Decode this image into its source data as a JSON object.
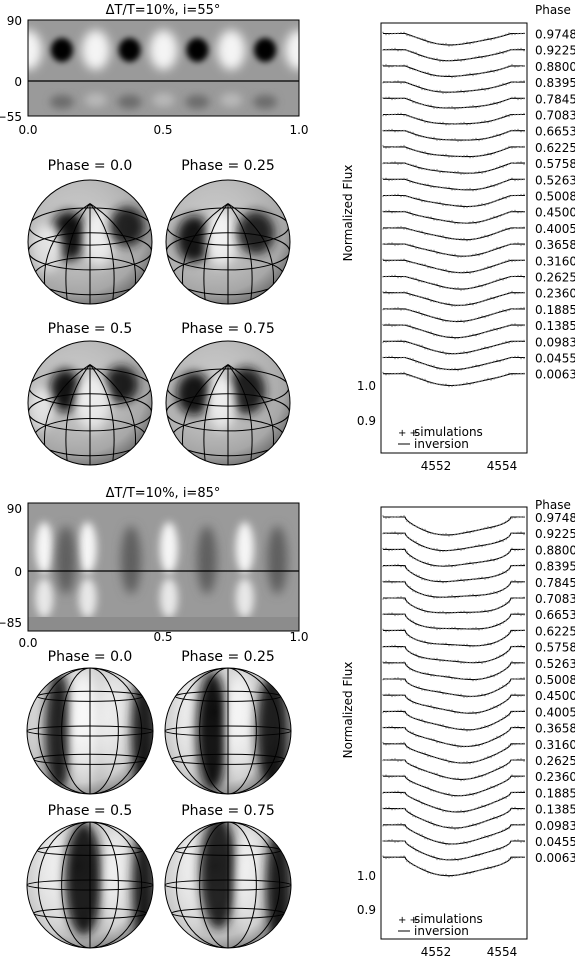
{
  "top": {
    "map_title": "ΔT/T=10%, i=55°",
    "map_yticks": [
      "90",
      "0",
      "−55"
    ],
    "map_xticks": [
      "0.0",
      "0.5",
      "1.0"
    ],
    "sphere_labels": [
      "Phase = 0.0",
      "Phase = 0.25",
      "Phase = 0.5",
      "Phase = 0.75"
    ],
    "phase_header": "Phase",
    "ylabel": "Normalized Flux",
    "yticks": [
      "1.0",
      "0.9"
    ],
    "xticks": [
      "4552",
      "4554"
    ],
    "legend": {
      "simulations": "simulations",
      "inversion": "inversion"
    }
  },
  "bottom": {
    "map_title": "ΔT/T=10%, i=85°",
    "map_yticks": [
      "90",
      "0",
      "−85"
    ],
    "map_xticks": [
      "0.0",
      "0.5",
      "1.0"
    ],
    "sphere_labels": [
      "Phase = 0.0",
      "Phase = 0.25",
      "Phase = 0.5",
      "Phase = 0.75"
    ],
    "phase_header": "Phase",
    "ylabel": "Normalized Flux",
    "yticks": [
      "1.0",
      "0.9"
    ],
    "xticks": [
      "4552",
      "4554"
    ],
    "legend": {
      "simulations": "simulations",
      "inversion": "inversion"
    }
  },
  "phases": [
    "0.9748",
    "0.9225",
    "0.8800",
    "0.8395",
    "0.7845",
    "0.7083",
    "0.6653",
    "0.6225",
    "0.5758",
    "0.5263",
    "0.5008",
    "0.4500",
    "0.4005",
    "0.3658",
    "0.3160",
    "0.2625",
    "0.2360",
    "0.1885",
    "0.1385",
    "0.0983",
    "0.0455",
    "0.0063"
  ],
  "chart_data": [
    {
      "type": "heatmap",
      "title": "ΔT/T=10%, i=55°",
      "xlabel": "",
      "ylabel": "",
      "xlim": [
        0,
        1
      ],
      "ylim": [
        -55,
        90
      ],
      "spots": [
        {
          "phase": 0.125,
          "lat": 45
        },
        {
          "phase": 0.375,
          "lat": 45
        },
        {
          "phase": 0.625,
          "lat": 45
        },
        {
          "phase": 0.875,
          "lat": 45
        }
      ]
    },
    {
      "type": "line",
      "ylabel": "Normalized Flux",
      "xlim": [
        4550.7,
        4554.7
      ],
      "ytick_values": [
        1.0,
        0.9
      ],
      "xtick_values": [
        4552,
        4554
      ],
      "series": [
        {
          "name": "simulations"
        },
        {
          "name": "inversion"
        }
      ]
    },
    {
      "type": "heatmap",
      "title": "ΔT/T=10%, i=85°",
      "xlabel": "",
      "ylabel": "",
      "xlim": [
        0,
        1
      ],
      "ylim": [
        -85,
        90
      ],
      "spots": [
        {
          "phase": 0.125,
          "lat": 20
        },
        {
          "phase": 0.375,
          "lat": 20
        },
        {
          "phase": 0.625,
          "lat": 20
        },
        {
          "phase": 0.875,
          "lat": 20
        }
      ]
    },
    {
      "type": "line",
      "ylabel": "Normalized Flux",
      "xlim": [
        4550.7,
        4554.7
      ],
      "ytick_values": [
        1.0,
        0.9
      ],
      "xtick_values": [
        4552,
        4554
      ],
      "series": [
        {
          "name": "simulations"
        },
        {
          "name": "inversion"
        }
      ]
    }
  ]
}
